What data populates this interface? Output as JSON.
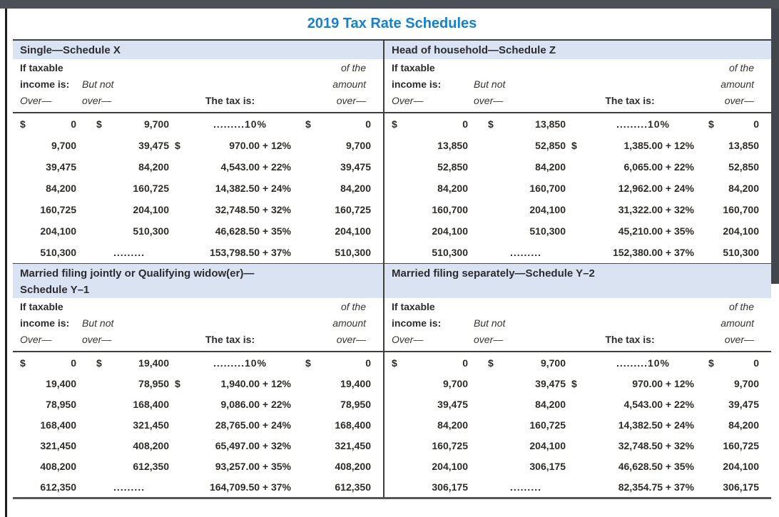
{
  "title": "2019 Tax Rate Schedules",
  "colors": {
    "title_blue": "#1480d3",
    "band_blue": "#d9e3f1",
    "rule_dark": "#3f3f3f",
    "chrome_bar": "#4c5157",
    "text_dark": "#2f2b28"
  },
  "column_headers": {
    "if_taxable": "If taxable",
    "income_is": "income is:",
    "over": "Over—",
    "but_not": "But not",
    "over2": "over—",
    "tax_is": "The tax is:",
    "of_the": "of the",
    "amount": "amount",
    "over3": "over—"
  },
  "schedules": [
    {
      "key": "single-schedule-x",
      "title_lines": [
        "Single—Schedule X"
      ],
      "rows": [
        {
          "over_sym": "$",
          "over": "0",
          "butnot_sym": "$",
          "butnot": "9,700",
          "tax_sym": "",
          "tax": ".........10%",
          "amt_sym": "$",
          "amt": "0"
        },
        {
          "over_sym": "",
          "over": "9,700",
          "butnot_sym": "",
          "butnot": "39,475",
          "tax_sym": "$",
          "tax": "970.00 + 12%",
          "amt_sym": "",
          "amt": "9,700"
        },
        {
          "over_sym": "",
          "over": "39,475",
          "butnot_sym": "",
          "butnot": "84,200",
          "tax_sym": "",
          "tax": "4,543.00 + 22%",
          "amt_sym": "",
          "amt": "39,475"
        },
        {
          "over_sym": "",
          "over": "84,200",
          "butnot_sym": "",
          "butnot": "160,725",
          "tax_sym": "",
          "tax": "14,382.50 + 24%",
          "amt_sym": "",
          "amt": "84,200"
        },
        {
          "over_sym": "",
          "over": "160,725",
          "butnot_sym": "",
          "butnot": "204,100",
          "tax_sym": "",
          "tax": "32,748.50 + 32%",
          "amt_sym": "",
          "amt": "160,725"
        },
        {
          "over_sym": "",
          "over": "204,100",
          "butnot_sym": "",
          "butnot": "510,300",
          "tax_sym": "",
          "tax": "46,628.50 + 35%",
          "amt_sym": "",
          "amt": "204,100"
        },
        {
          "over_sym": "",
          "over": "510,300",
          "butnot_sym": "",
          "butnot": ".........",
          "tax_sym": "",
          "tax": "153,798.50 + 37%",
          "amt_sym": "",
          "amt": "510,300"
        }
      ]
    },
    {
      "key": "head-of-household-schedule-z",
      "title_lines": [
        "Head of household—Schedule Z"
      ],
      "rows": [
        {
          "over_sym": "$",
          "over": "0",
          "butnot_sym": "$",
          "butnot": "13,850",
          "tax_sym": "",
          "tax": ".........10%",
          "amt_sym": "$",
          "amt": "0"
        },
        {
          "over_sym": "",
          "over": "13,850",
          "butnot_sym": "",
          "butnot": "52,850",
          "tax_sym": "$",
          "tax": "1,385.00 + 12%",
          "amt_sym": "",
          "amt": "13,850"
        },
        {
          "over_sym": "",
          "over": "52,850",
          "butnot_sym": "",
          "butnot": "84,200",
          "tax_sym": "",
          "tax": "6,065.00 + 22%",
          "amt_sym": "",
          "amt": "52,850"
        },
        {
          "over_sym": "",
          "over": "84,200",
          "butnot_sym": "",
          "butnot": "160,700",
          "tax_sym": "",
          "tax": "12,962.00 + 24%",
          "amt_sym": "",
          "amt": "84,200"
        },
        {
          "over_sym": "",
          "over": "160,700",
          "butnot_sym": "",
          "butnot": "204,100",
          "tax_sym": "",
          "tax": "31,322.00 + 32%",
          "amt_sym": "",
          "amt": "160,700"
        },
        {
          "over_sym": "",
          "over": "204,100",
          "butnot_sym": "",
          "butnot": "510,300",
          "tax_sym": "",
          "tax": "45,210.00 + 35%",
          "amt_sym": "",
          "amt": "204,100"
        },
        {
          "over_sym": "",
          "over": "510,300",
          "butnot_sym": "",
          "butnot": ".........",
          "tax_sym": "",
          "tax": "152,380.00 + 37%",
          "amt_sym": "",
          "amt": "510,300"
        }
      ]
    },
    {
      "key": "married-filing-jointly-schedule-y1",
      "title_lines": [
        "Married filing jointly or Qualifying widow(er)—",
        "Schedule Y–1"
      ],
      "rows": [
        {
          "over_sym": "$",
          "over": "0",
          "butnot_sym": "$",
          "butnot": "19,400",
          "tax_sym": "",
          "tax": ".........10%",
          "amt_sym": "$",
          "amt": "0"
        },
        {
          "over_sym": "",
          "over": "19,400",
          "butnot_sym": "",
          "butnot": "78,950",
          "tax_sym": "$",
          "tax": "1,940.00 + 12%",
          "amt_sym": "",
          "amt": "19,400"
        },
        {
          "over_sym": "",
          "over": "78,950",
          "butnot_sym": "",
          "butnot": "168,400",
          "tax_sym": "",
          "tax": "9,086.00 + 22%",
          "amt_sym": "",
          "amt": "78,950"
        },
        {
          "over_sym": "",
          "over": "168,400",
          "butnot_sym": "",
          "butnot": "321,450",
          "tax_sym": "",
          "tax": "28,765.00 + 24%",
          "amt_sym": "",
          "amt": "168,400"
        },
        {
          "over_sym": "",
          "over": "321,450",
          "butnot_sym": "",
          "butnot": "408,200",
          "tax_sym": "",
          "tax": "65,497.00 + 32%",
          "amt_sym": "",
          "amt": "321,450"
        },
        {
          "over_sym": "",
          "over": "408,200",
          "butnot_sym": "",
          "butnot": "612,350",
          "tax_sym": "",
          "tax": "93,257.00 + 35%",
          "amt_sym": "",
          "amt": "408,200"
        },
        {
          "over_sym": "",
          "over": "612,350",
          "butnot_sym": "",
          "butnot": ".........",
          "tax_sym": "",
          "tax": "164,709.50 + 37%",
          "amt_sym": "",
          "amt": "612,350"
        }
      ]
    },
    {
      "key": "married-filing-separately-schedule-y2",
      "title_lines": [
        "Married filing separately—Schedule Y–2"
      ],
      "rows": [
        {
          "over_sym": "$",
          "over": "0",
          "butnot_sym": "$",
          "butnot": "9,700",
          "tax_sym": "",
          "tax": ".........10%",
          "amt_sym": "$",
          "amt": "0"
        },
        {
          "over_sym": "",
          "over": "9,700",
          "butnot_sym": "",
          "butnot": "39,475",
          "tax_sym": "$",
          "tax": "970.00 + 12%",
          "amt_sym": "",
          "amt": "9,700"
        },
        {
          "over_sym": "",
          "over": "39,475",
          "butnot_sym": "",
          "butnot": "84,200",
          "tax_sym": "",
          "tax": "4,543.00 + 22%",
          "amt_sym": "",
          "amt": "39,475"
        },
        {
          "over_sym": "",
          "over": "84,200",
          "butnot_sym": "",
          "butnot": "160,725",
          "tax_sym": "",
          "tax": "14,382.50 + 24%",
          "amt_sym": "",
          "amt": "84,200"
        },
        {
          "over_sym": "",
          "over": "160,725",
          "butnot_sym": "",
          "butnot": "204,100",
          "tax_sym": "",
          "tax": "32,748.50 + 32%",
          "amt_sym": "",
          "amt": "160,725"
        },
        {
          "over_sym": "",
          "over": "204,100",
          "butnot_sym": "",
          "butnot": "306,175",
          "tax_sym": "",
          "tax": "46,628.50 + 35%",
          "amt_sym": "",
          "amt": "204,100"
        },
        {
          "over_sym": "",
          "over": "306,175",
          "butnot_sym": "",
          "butnot": ".........",
          "tax_sym": "",
          "tax": "82,354.75 + 37%",
          "amt_sym": "",
          "amt": "306,175"
        }
      ]
    }
  ]
}
